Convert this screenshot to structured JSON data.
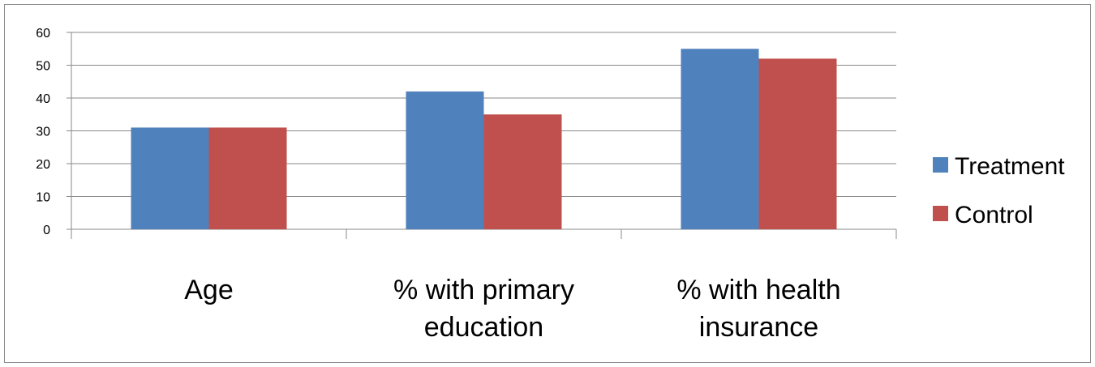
{
  "chart_data": {
    "type": "bar",
    "categories": [
      [
        "Age"
      ],
      [
        "% with primary",
        "education"
      ],
      [
        "% with health",
        "insurance"
      ]
    ],
    "series": [
      {
        "name": "Treatment",
        "values": [
          31,
          42,
          55
        ],
        "color": "#4F81BD"
      },
      {
        "name": "Control",
        "values": [
          31,
          35,
          52
        ],
        "color": "#C0504D"
      }
    ],
    "ylim": [
      0,
      60
    ],
    "yticks": [
      0,
      10,
      20,
      30,
      40,
      50,
      60
    ],
    "grid": true,
    "legend_position": "right"
  }
}
